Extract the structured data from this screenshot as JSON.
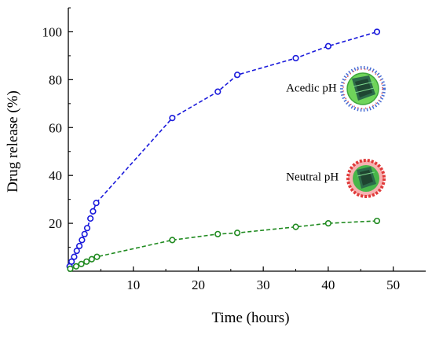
{
  "chart_data": {
    "type": "scatter",
    "xlabel": "Time (hours)",
    "ylabel": "Drug release (%)",
    "xlim": [
      0,
      55
    ],
    "ylim": [
      0,
      110
    ],
    "xticks": [
      10,
      20,
      30,
      40,
      50
    ],
    "yticks": [
      20,
      40,
      60,
      80,
      100
    ],
    "grid": false,
    "series": [
      {
        "color": "#1a1adb",
        "line": "dashed",
        "points": [
          [
            0.2,
            2.0
          ],
          [
            0.5,
            4.0
          ],
          [
            0.9,
            6.0
          ],
          [
            1.3,
            8.5
          ],
          [
            1.7,
            10.5
          ],
          [
            2.1,
            13.0
          ],
          [
            2.5,
            15.5
          ],
          [
            2.9,
            18.0
          ],
          [
            3.4,
            22.0
          ],
          [
            3.8,
            25.0
          ],
          [
            4.3,
            28.5
          ],
          [
            16.0,
            64.0
          ],
          [
            23.0,
            75.0
          ],
          [
            26.0,
            82.0
          ],
          [
            35.0,
            89.0
          ],
          [
            40.0,
            94.0
          ],
          [
            47.5,
            100.0
          ]
        ]
      },
      {
        "color": "#1f8a1f",
        "line": "dashed",
        "points": [
          [
            0.3,
            1.0
          ],
          [
            1.2,
            2.0
          ],
          [
            2.0,
            3.0
          ],
          [
            2.8,
            4.0
          ],
          [
            3.6,
            5.0
          ],
          [
            4.4,
            6.0
          ],
          [
            16.0,
            13.0
          ],
          [
            23.0,
            15.5
          ],
          [
            26.0,
            16.0
          ],
          [
            35.0,
            18.5
          ],
          [
            40.0,
            20.0
          ],
          [
            47.5,
            21.0
          ]
        ]
      }
    ],
    "annotations": [
      {
        "text": "Acedic pH",
        "color": "#1a1adb",
        "x": 33.5,
        "y": 75
      },
      {
        "text": "Neutral pH",
        "color": "#1f8a1f",
        "x": 33.5,
        "y": 38
      }
    ]
  }
}
